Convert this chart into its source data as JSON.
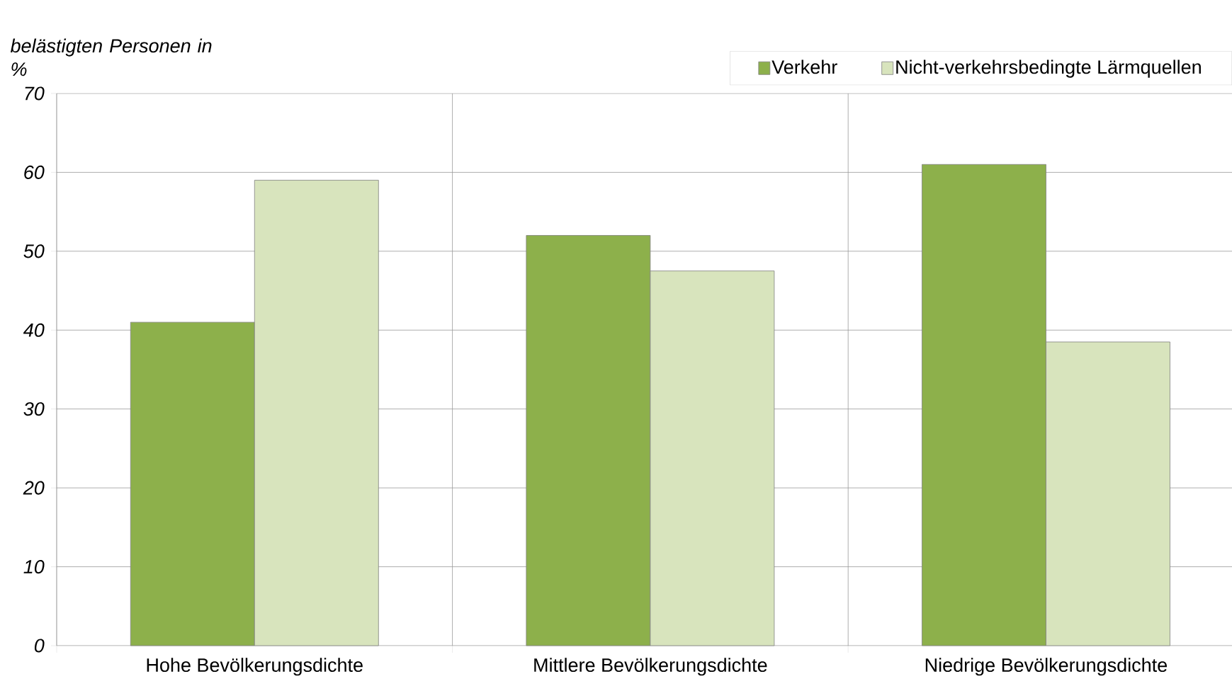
{
  "chart_data": {
    "type": "bar",
    "ylabel": "belästigten Personen in %",
    "categories": [
      "Hohe Bevölkerungsdichte",
      "Mittlere Bevölkerungsdichte",
      "Niedrige Bevölkerungsdichte"
    ],
    "series": [
      {
        "name": "Verkehr",
        "color": "#8db04b",
        "values": [
          41,
          52,
          61
        ]
      },
      {
        "name": "Nicht-verkehrsbedingte Lärmquellen",
        "color": "#d8e4bd",
        "values": [
          59,
          47.5,
          38.5
        ]
      }
    ],
    "ylim": [
      0,
      70
    ],
    "yticks": [
      0,
      10,
      20,
      30,
      40,
      50,
      60,
      70
    ],
    "grid": true,
    "legend": "top right"
  }
}
